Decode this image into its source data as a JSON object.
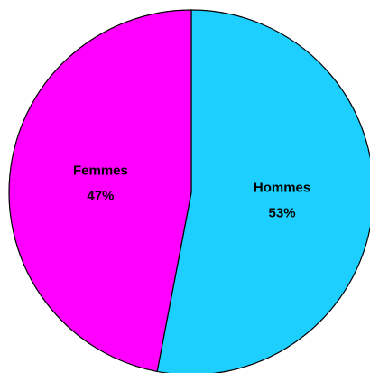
{
  "chart_data": {
    "type": "pie",
    "categories": [
      "Hommes",
      "Femmes"
    ],
    "values": [
      53,
      47
    ],
    "value_labels": [
      "53%",
      "47%"
    ],
    "colors": [
      "#1ccfff",
      "#ff00ff"
    ]
  }
}
